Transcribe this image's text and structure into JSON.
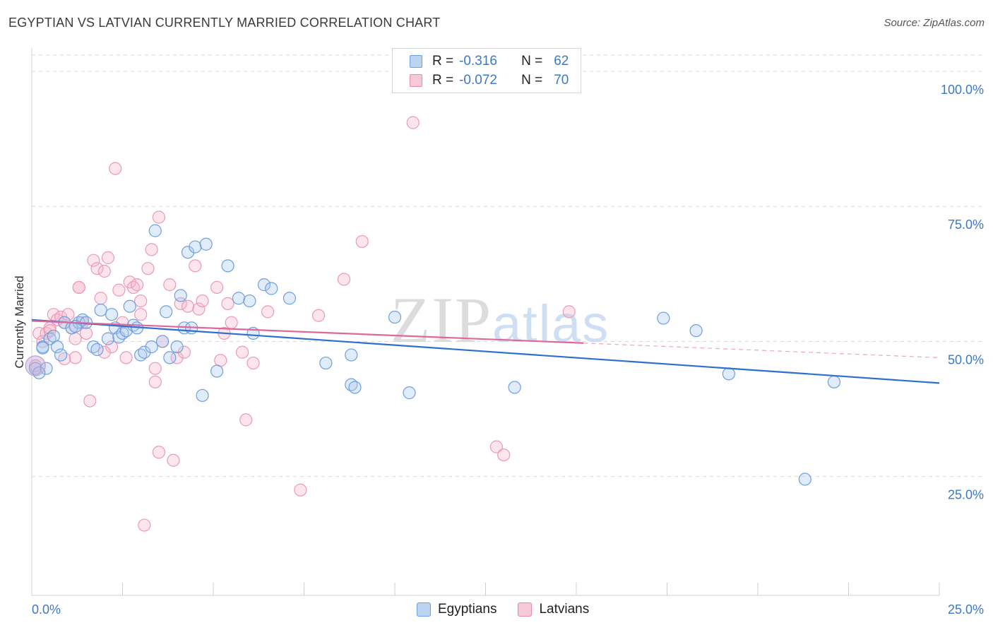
{
  "title": "EGYPTIAN VS LATVIAN CURRENTLY MARRIED CORRELATION CHART",
  "source": "Source: ZipAtlas.com",
  "watermark": {
    "zip": "ZIP",
    "atlas": "atlas"
  },
  "legend": {
    "rows": [
      {
        "r_label": "R =",
        "r_value": "-0.316",
        "n_label": "N =",
        "n_value": "62",
        "color": "#6f9fdc",
        "fill": "#bcd3f2"
      },
      {
        "r_label": "R =",
        "r_value": "-0.072",
        "n_label": "N =",
        "n_value": "70",
        "color": "#e88aa8",
        "fill": "#f7c8d6"
      }
    ]
  },
  "bottom_legend": [
    "Egyptians",
    "Latvians"
  ],
  "chart_data": {
    "type": "scatter",
    "title": "EGYPTIAN VS LATVIAN CURRENTLY MARRIED CORRELATION CHART",
    "xlabel": "",
    "ylabel": "Currently Married",
    "xlim": [
      0,
      25
    ],
    "ylim": [
      3,
      103
    ],
    "x_tick_labels": [
      "0.0%",
      "25.0%"
    ],
    "y_ticks": [
      25,
      50,
      75,
      100
    ],
    "y_tick_labels": [
      "25.0%",
      "50.0%",
      "75.0%",
      "100.0%"
    ],
    "grid": "horizontal dashed",
    "legend_position": "top-center",
    "series": [
      {
        "name": "Egyptians",
        "color": "#3b78d8",
        "trend": {
          "x0": 0.0,
          "y0": 54.0,
          "x1": 25.0,
          "y1": 42.3
        },
        "points": [
          [
            0.1,
            45.0
          ],
          [
            0.4,
            45.0
          ],
          [
            0.3,
            49.0
          ],
          [
            0.5,
            50.5
          ],
          [
            0.7,
            49.0
          ],
          [
            0.6,
            51.0
          ],
          [
            0.8,
            47.5
          ],
          [
            0.9,
            53.5
          ],
          [
            1.1,
            52.5
          ],
          [
            1.3,
            53.5
          ],
          [
            1.4,
            54.0
          ],
          [
            1.5,
            53.5
          ],
          [
            1.7,
            49.0
          ],
          [
            1.8,
            48.5
          ],
          [
            1.9,
            55.8
          ],
          [
            2.1,
            50.5
          ],
          [
            2.2,
            55.0
          ],
          [
            2.3,
            52.5
          ],
          [
            2.4,
            50.8
          ],
          [
            2.5,
            51.5
          ],
          [
            2.6,
            52.0
          ],
          [
            2.7,
            56.5
          ],
          [
            2.8,
            53.0
          ],
          [
            2.9,
            52.5
          ],
          [
            3.0,
            47.5
          ],
          [
            3.1,
            48.0
          ],
          [
            3.3,
            49.0
          ],
          [
            3.4,
            70.5
          ],
          [
            3.6,
            50.0
          ],
          [
            3.7,
            55.5
          ],
          [
            3.8,
            47.0
          ],
          [
            4.0,
            49.0
          ],
          [
            4.1,
            58.5
          ],
          [
            4.2,
            52.5
          ],
          [
            4.3,
            66.5
          ],
          [
            4.4,
            52.5
          ],
          [
            4.5,
            67.5
          ],
          [
            4.7,
            40.0
          ],
          [
            4.8,
            68.0
          ],
          [
            5.1,
            44.5
          ],
          [
            5.4,
            64.0
          ],
          [
            5.7,
            58.0
          ],
          [
            6.0,
            57.5
          ],
          [
            6.1,
            51.5
          ],
          [
            6.4,
            60.5
          ],
          [
            6.6,
            59.8
          ],
          [
            7.1,
            58.0
          ],
          [
            8.1,
            46.0
          ],
          [
            8.8,
            47.5
          ],
          [
            8.8,
            42.0
          ],
          [
            8.9,
            41.5
          ],
          [
            10.0,
            54.5
          ],
          [
            10.4,
            40.5
          ],
          [
            13.3,
            41.5
          ],
          [
            17.4,
            54.3
          ],
          [
            18.3,
            52.0
          ],
          [
            19.2,
            44.0
          ],
          [
            21.3,
            24.5
          ],
          [
            22.1,
            42.5
          ],
          [
            0.2,
            44.2
          ],
          [
            0.3,
            48.8
          ],
          [
            1.2,
            52.8
          ]
        ]
      },
      {
        "name": "Latvians",
        "color": "#e0679a",
        "trend_solid": {
          "x0": 0.0,
          "y0": 53.8,
          "x1": 15.2,
          "y1": 49.7
        },
        "trend_dashed": {
          "x0": 15.2,
          "y0": 49.7,
          "x1": 25.0,
          "y1": 47.0
        },
        "points": [
          [
            0.2,
            51.5
          ],
          [
            0.3,
            50.0
          ],
          [
            0.4,
            51.5
          ],
          [
            0.5,
            52.5
          ],
          [
            0.6,
            55.0
          ],
          [
            0.7,
            54.0
          ],
          [
            0.8,
            54.5
          ],
          [
            0.9,
            53.5
          ],
          [
            1.0,
            55.0
          ],
          [
            1.1,
            52.5
          ],
          [
            1.2,
            47.0
          ],
          [
            1.2,
            50.5
          ],
          [
            1.3,
            60.0
          ],
          [
            1.4,
            53.5
          ],
          [
            1.5,
            51.5
          ],
          [
            1.6,
            39.0
          ],
          [
            1.7,
            65.0
          ],
          [
            1.8,
            63.5
          ],
          [
            1.9,
            58.0
          ],
          [
            2.0,
            63.0
          ],
          [
            2.1,
            65.5
          ],
          [
            2.2,
            49.0
          ],
          [
            2.3,
            82.0
          ],
          [
            2.4,
            59.5
          ],
          [
            2.5,
            53.5
          ],
          [
            2.6,
            47.0
          ],
          [
            2.7,
            61.0
          ],
          [
            2.8,
            60.0
          ],
          [
            2.9,
            60.5
          ],
          [
            3.0,
            57.5
          ],
          [
            3.1,
            16.0
          ],
          [
            3.2,
            63.5
          ],
          [
            3.3,
            67.0
          ],
          [
            3.4,
            45.0
          ],
          [
            3.4,
            42.5
          ],
          [
            3.5,
            73.0
          ],
          [
            3.5,
            29.5
          ],
          [
            3.6,
            50.0
          ],
          [
            3.8,
            60.5
          ],
          [
            3.9,
            28.0
          ],
          [
            4.0,
            47.0
          ],
          [
            4.1,
            57.0
          ],
          [
            4.2,
            48.0
          ],
          [
            4.3,
            56.5
          ],
          [
            4.5,
            64.0
          ],
          [
            4.6,
            56.0
          ],
          [
            4.7,
            57.5
          ],
          [
            5.1,
            60.0
          ],
          [
            5.2,
            46.5
          ],
          [
            5.3,
            51.5
          ],
          [
            5.4,
            57.0
          ],
          [
            5.5,
            53.5
          ],
          [
            5.8,
            48.0
          ],
          [
            5.9,
            35.5
          ],
          [
            6.1,
            46.0
          ],
          [
            6.5,
            55.5
          ],
          [
            7.4,
            22.5
          ],
          [
            7.9,
            54.8
          ],
          [
            8.6,
            61.5
          ],
          [
            9.1,
            68.5
          ],
          [
            10.5,
            90.5
          ],
          [
            12.8,
            30.5
          ],
          [
            13.0,
            29.0
          ],
          [
            14.8,
            55.5
          ],
          [
            0.1,
            45.5
          ],
          [
            0.9,
            46.8
          ],
          [
            1.3,
            60.0
          ],
          [
            2.0,
            48.0
          ],
          [
            0.5,
            52.0
          ],
          [
            3.0,
            55.0
          ]
        ]
      }
    ]
  }
}
